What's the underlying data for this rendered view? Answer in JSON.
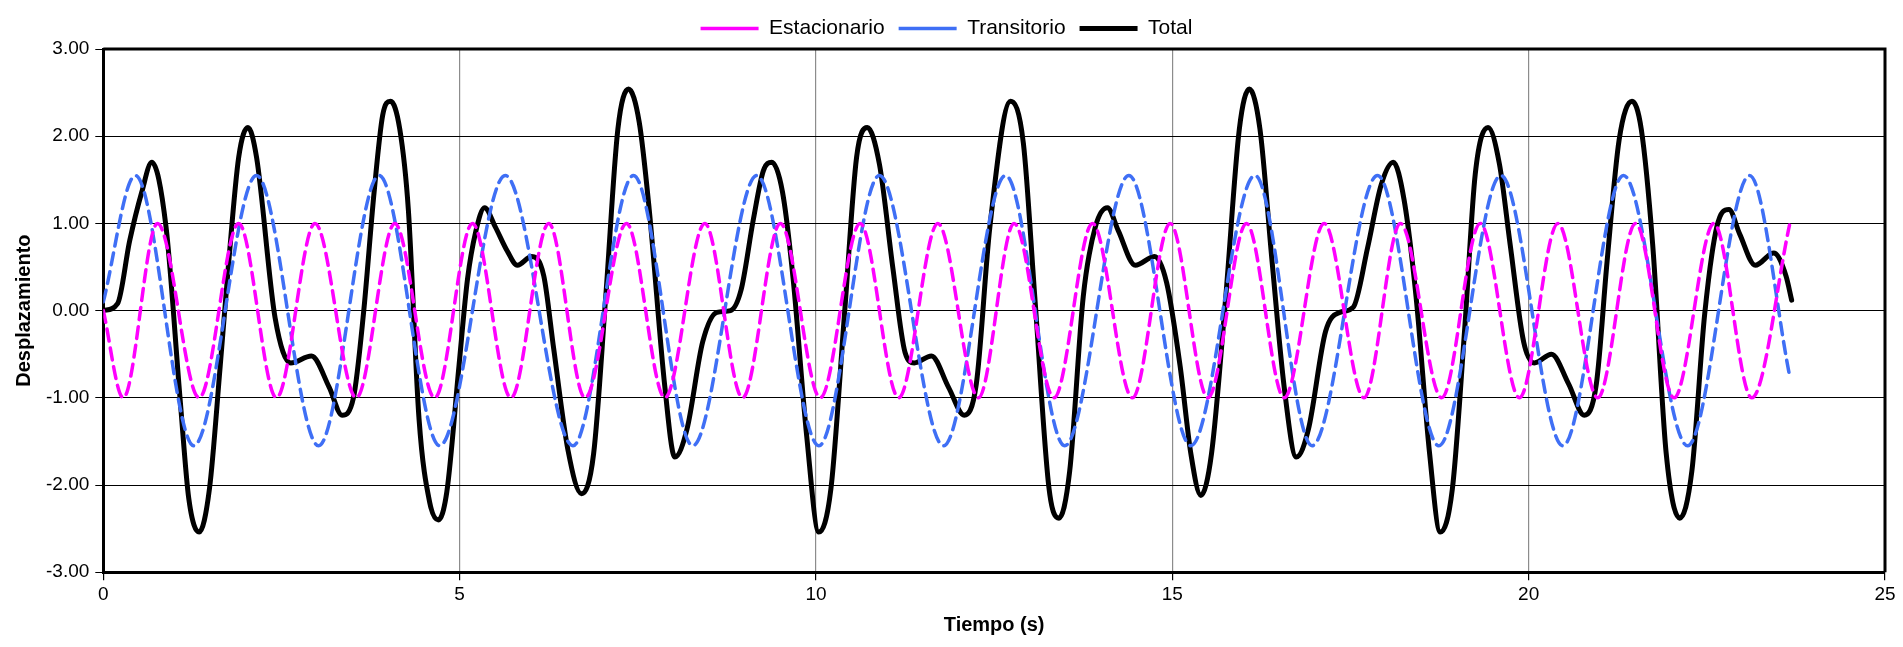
{
  "chart_data": {
    "type": "line",
    "xlabel": "Tiempo (s)",
    "ylabel": "Desplazamiento",
    "xlim": [
      0,
      25
    ],
    "xticks": [
      0,
      5,
      10,
      15,
      20,
      25
    ],
    "ylim": [
      -3,
      3
    ],
    "yticks": [
      {
        "value": -3,
        "label": "-3.00"
      },
      {
        "value": -2,
        "label": "-2.00"
      },
      {
        "value": -1,
        "label": "-1.00"
      },
      {
        "value": 0,
        "label": "0.00"
      },
      {
        "value": 1,
        "label": "1.00"
      },
      {
        "value": 2,
        "label": "2.00"
      },
      {
        "value": 3,
        "label": "3.00"
      }
    ],
    "grid": true,
    "legend": "top",
    "marker": "none",
    "series": [
      {
        "name": "Estacionario",
        "color": "#ff00ff",
        "line_style": "dashed",
        "x": [
          0,
          0.28,
          0.76,
          1.345,
          1.9,
          2.43,
          2.97,
          3.55,
          4.09,
          4.65,
          5.18,
          5.72,
          6.25,
          6.76,
          7.34,
          7.88,
          8.44,
          8.97,
          9.5,
          10.06,
          10.62,
          11.16,
          11.71,
          12.28,
          12.78,
          13.34,
          13.88,
          14.44,
          14.97,
          15.5,
          16.04,
          16.57,
          17.13,
          17.69,
          18.2,
          18.78,
          19.32,
          19.87,
          20.41,
          20.97,
          21.5,
          22.04,
          22.6,
          23.13,
          23.66
        ],
        "values": [
          0,
          -1,
          1,
          -1,
          1,
          -1,
          1,
          -1,
          1,
          -1,
          1,
          -1,
          1,
          -1,
          1,
          -1,
          1,
          -1,
          1,
          -1,
          1,
          -1,
          1,
          -1,
          1,
          -1,
          1,
          -1,
          1,
          -1,
          1,
          -1,
          1,
          -1,
          1,
          -1,
          1,
          -1,
          1,
          -1,
          1,
          -1,
          1,
          -1,
          0.98
        ]
      },
      {
        "name": "Transitorio",
        "color": "#3f6ff5",
        "line_style": "dashed",
        "x": [
          0,
          0.45,
          1.27,
          2.15,
          3.02,
          3.87,
          4.72,
          5.64,
          6.59,
          7.44,
          8.27,
          9.17,
          10.04,
          10.89,
          11.79,
          12.66,
          13.49,
          14.39,
          15.26,
          16.16,
          16.96,
          17.88,
          18.74,
          19.61,
          20.48,
          21.33,
          22.23,
          23.1,
          23.66
        ],
        "values": [
          0.1,
          1.55,
          -1.55,
          1.55,
          -1.55,
          1.55,
          -1.55,
          1.55,
          -1.55,
          1.55,
          -1.55,
          1.55,
          -1.55,
          1.55,
          -1.55,
          1.55,
          -1.55,
          1.55,
          -1.55,
          1.55,
          -1.55,
          1.55,
          -1.55,
          1.55,
          -1.55,
          1.55,
          -1.55,
          1.55,
          -0.74
        ]
      },
      {
        "name": "Total",
        "color": "#000000",
        "line_style": "solid",
        "x": [
          0,
          0.2,
          0.37,
          0.54,
          0.68,
          0.88,
          1.08,
          1.2,
          1.345,
          1.49,
          1.64,
          1.76,
          1.9,
          2.03,
          2.15,
          2.41,
          2.63,
          2.92,
          3.17,
          3.35,
          3.51,
          3.65,
          3.8,
          3.92,
          4.03,
          4.16,
          4.28,
          4.43,
          4.58,
          4.7,
          4.82,
          4.99,
          5.11,
          5.23,
          5.35,
          5.5,
          5.67,
          5.81,
          6.01,
          6.18,
          6.32,
          6.52,
          6.71,
          6.88,
          7.05,
          7.22,
          7.37,
          7.52,
          7.66,
          7.88,
          8.02,
          8.19,
          8.41,
          8.61,
          8.8,
          8.95,
          9.12,
          9.26,
          9.38,
          9.53,
          9.68,
          9.87,
          10.04,
          10.21,
          10.4,
          10.57,
          10.72,
          10.89,
          11.08,
          11.25,
          11.38,
          11.62,
          11.86,
          12.08,
          12.25,
          12.44,
          12.73,
          12.91,
          13.07,
          13.27,
          13.41,
          13.56,
          13.75,
          13.92,
          14.09,
          14.24,
          14.48,
          14.75,
          14.92,
          15.11,
          15.26,
          15.4,
          15.55,
          15.75,
          15.94,
          16.08,
          16.23,
          16.4,
          16.57,
          16.74,
          16.91,
          17.15,
          17.35,
          17.54,
          17.74,
          17.93,
          18.1,
          18.25,
          18.42,
          18.61,
          18.76,
          18.93,
          19.1,
          19.25,
          19.43,
          19.59,
          19.74,
          19.93,
          20.08,
          20.32,
          20.56,
          20.78,
          20.95,
          21.1,
          21.27,
          21.45,
          21.58,
          21.74,
          21.93,
          22.12,
          22.29,
          22.47,
          22.64,
          22.81,
          22.96,
          23.18,
          23.44,
          23.61,
          23.69
        ],
        "values": [
          0,
          0.08,
          0.8,
          1.36,
          1.7,
          0.96,
          -1.04,
          -2.16,
          -2.54,
          -2.04,
          -0.64,
          0.56,
          1.76,
          2.1,
          1.76,
          -0.08,
          -0.6,
          -0.52,
          -0.88,
          -1.2,
          -1,
          -0.04,
          1.36,
          2.24,
          2.4,
          2.08,
          1.16,
          -1.24,
          -2.2,
          -2.4,
          -2.08,
          -0.64,
          0.36,
          0.92,
          1.18,
          0.96,
          0.68,
          0.52,
          0.62,
          0.4,
          -0.44,
          -1.6,
          -2.1,
          -1.64,
          0.16,
          2.08,
          2.54,
          2.16,
          1.16,
          -0.88,
          -1.68,
          -1.36,
          -0.36,
          -0.02,
          0,
          0.24,
          1.04,
          1.6,
          1.7,
          1.36,
          0.36,
          -1.44,
          -2.54,
          -2.04,
          -0.04,
          1.76,
          2.1,
          1.68,
          0.48,
          -0.48,
          -0.6,
          -0.52,
          -0.88,
          -1.2,
          -0.84,
          0.96,
          2.4,
          1.92,
          0.16,
          -2.04,
          -2.38,
          -1.84,
          0.16,
          0.96,
          1.18,
          0.92,
          0.52,
          0.62,
          0.32,
          -0.64,
          -1.64,
          -2.12,
          -1.64,
          0.16,
          2.08,
          2.54,
          2.08,
          0.56,
          -0.88,
          -1.68,
          -1.36,
          -0.24,
          -0.02,
          0.04,
          0.72,
          1.44,
          1.7,
          1.28,
          0.16,
          -1.64,
          -2.54,
          -2.04,
          -0.24,
          1.56,
          2.1,
          1.68,
          0.76,
          -0.36,
          -0.6,
          -0.5,
          -0.84,
          -1.2,
          -0.84,
          0.56,
          1.96,
          2.4,
          2.08,
          0.76,
          -1.64,
          -2.38,
          -1.84,
          -0.04,
          0.96,
          1.16,
          0.88,
          0.52,
          0.66,
          0.4,
          0.12
        ]
      }
    ]
  }
}
